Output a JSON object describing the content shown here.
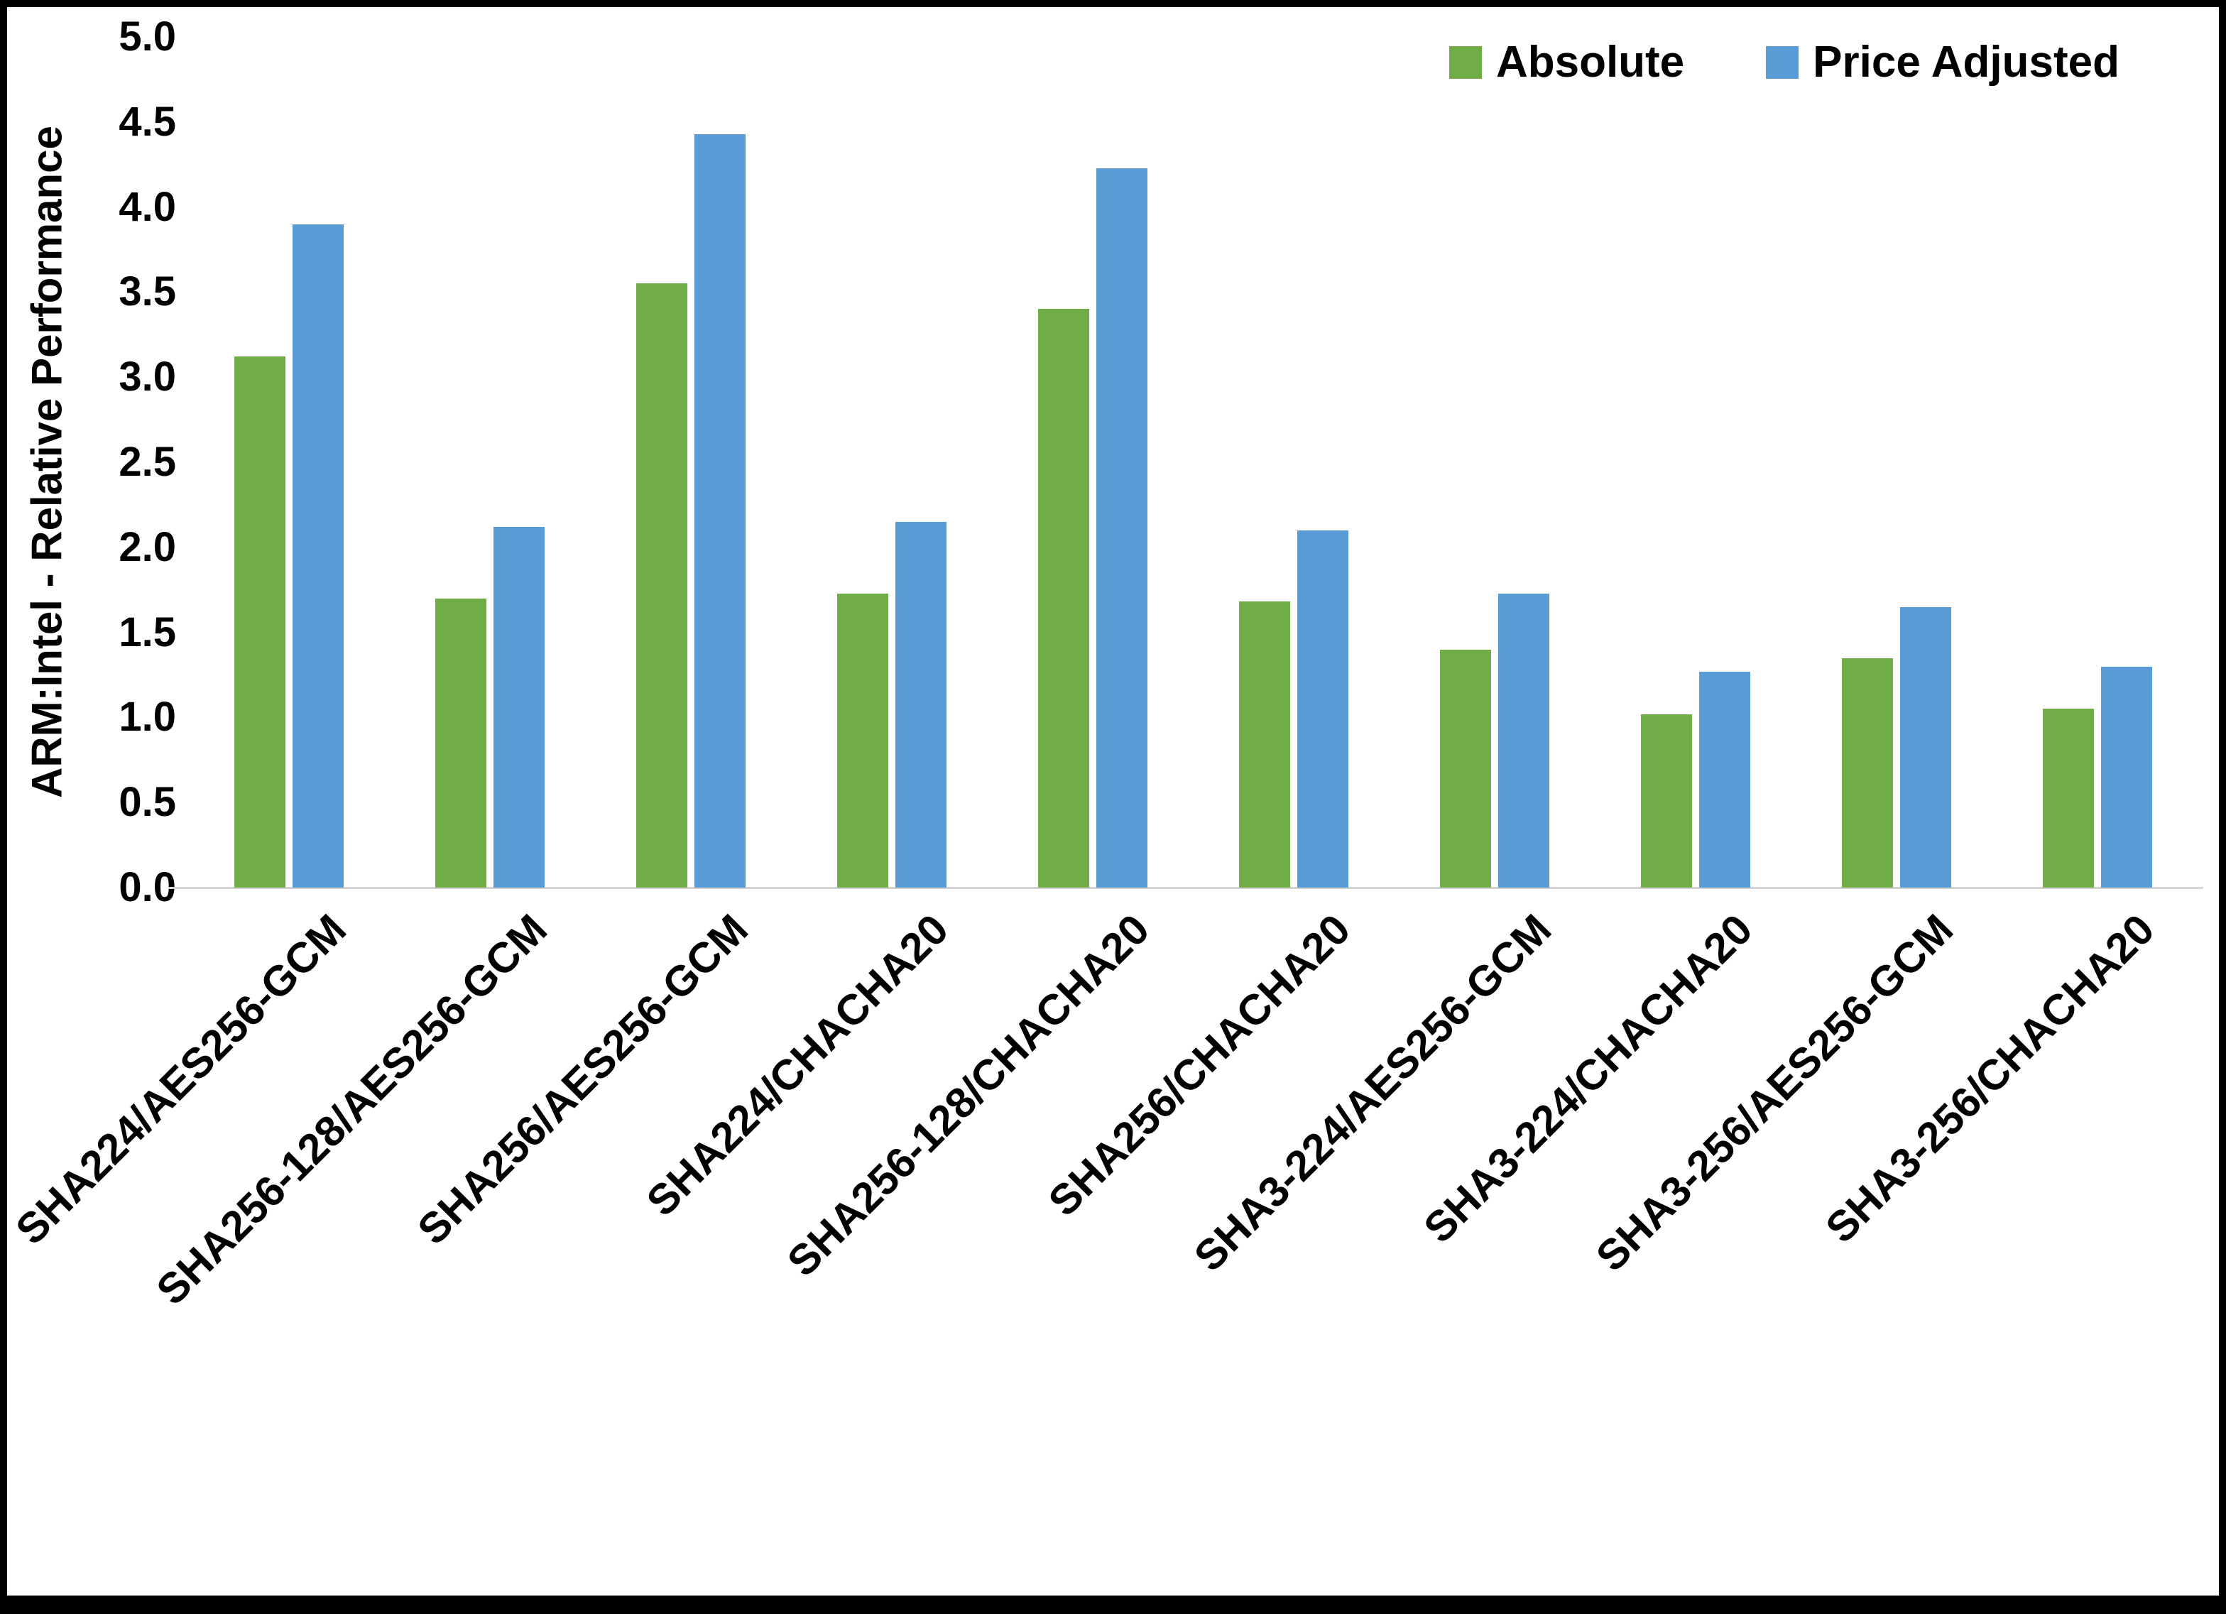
{
  "chart_data": {
    "type": "bar",
    "title": "",
    "xlabel": "",
    "ylabel": "ARM:Intel - Relative Performance",
    "ylim": [
      0,
      5
    ],
    "ytick_step": 0.5,
    "yticks": [
      "5.0",
      "4.5",
      "4.0",
      "3.5",
      "3.0",
      "2.5",
      "2.0",
      "1.5",
      "1.0",
      "0.5",
      "0.0"
    ],
    "grid": false,
    "legend_position": "top-right",
    "categories": [
      "SHA224/AES256-GCM",
      "SHA256-128/AES256-GCM",
      "SHA256/AES256-GCM",
      "SHA224/CHACHA20",
      "SHA256-128/CHACHA20",
      "SHA256/CHACHA20",
      "SHA3-224/AES256-GCM",
      "SHA3-224/CHACHA20",
      "SHA3-256/AES256-GCM",
      "SHA3-256/CHACHA20"
    ],
    "series": [
      {
        "name": "Absolute",
        "color": "#70AD47",
        "values": [
          3.12,
          1.7,
          3.55,
          1.73,
          3.4,
          1.68,
          1.4,
          1.02,
          1.35,
          1.05
        ]
      },
      {
        "name": "Price Adjusted",
        "color": "#5B9BD5",
        "values": [
          3.9,
          2.12,
          4.43,
          2.15,
          4.23,
          2.1,
          1.73,
          1.27,
          1.65,
          1.3
        ]
      }
    ]
  }
}
